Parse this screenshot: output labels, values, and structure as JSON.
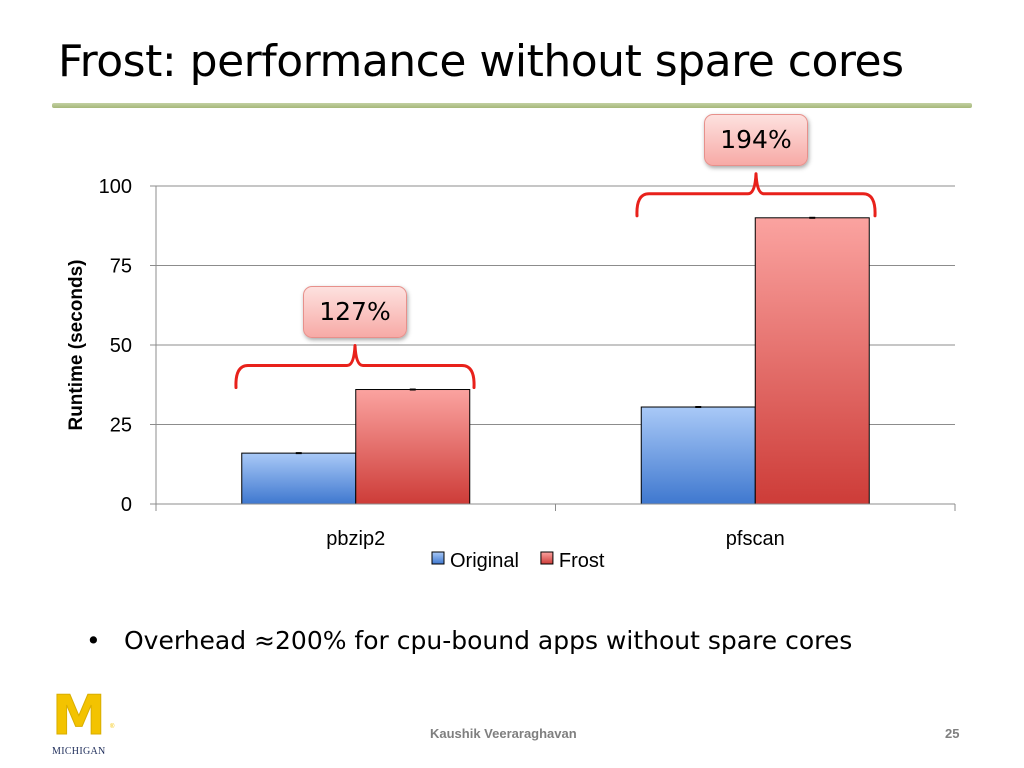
{
  "title": "Frost: performance without spare cores",
  "callouts": [
    {
      "text": "127%",
      "group": "pbzip2"
    },
    {
      "text": "194%",
      "group": "pfscan"
    }
  ],
  "bullet": "Overhead ≈200% for cpu-bound apps without spare cores",
  "footer": {
    "author": "Kaushik Veeraraghavan",
    "page": "25"
  },
  "logo": {
    "letter": "M",
    "wordmark": "MICHIGAN",
    "registered": "®",
    "colors": {
      "maize": "#f3c300",
      "blue": "#1e2d5a"
    }
  },
  "chart_data": {
    "type": "bar",
    "categories": [
      "pbzip2",
      "pfscan"
    ],
    "series": [
      {
        "name": "Original",
        "values": [
          16,
          30.5
        ],
        "color": "#5b8fd9"
      },
      {
        "name": "Frost",
        "values": [
          36,
          90
        ],
        "color": "#e0524e"
      }
    ],
    "ylabel": "Runtime (seconds)",
    "xlabel": "",
    "ylim": [
      0,
      100
    ],
    "yticks": [
      0,
      25,
      50,
      75,
      100
    ],
    "grid": true,
    "legend": "bottom"
  }
}
